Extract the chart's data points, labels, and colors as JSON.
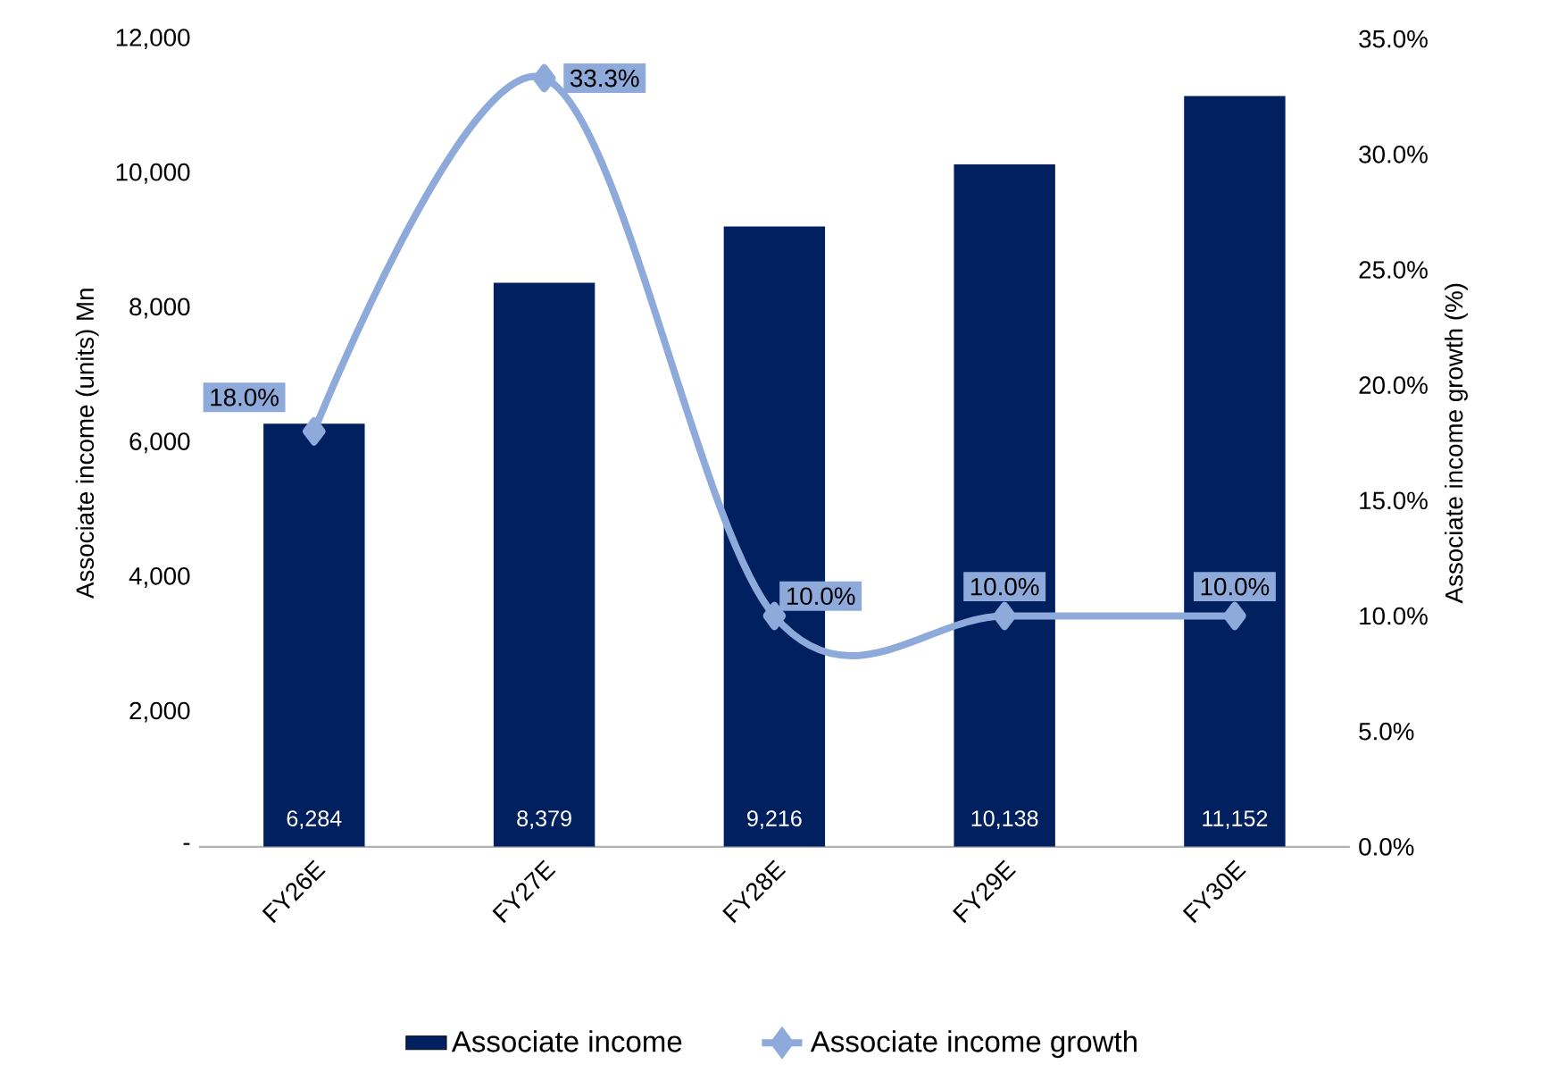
{
  "chart_data": {
    "type": "bar",
    "categories": [
      "FY26E",
      "FY27E",
      "FY28E",
      "FY29E",
      "FY30E"
    ],
    "ylabel": "Associate income (units) Mn",
    "y2label": "Associate income growth (%)",
    "ylim": [
      0,
      12000
    ],
    "yticks": [
      {
        "value": 0,
        "label": "-"
      },
      {
        "value": 2000,
        "label": "2,000"
      },
      {
        "value": 4000,
        "label": "4,000"
      },
      {
        "value": 6000,
        "label": "6,000"
      },
      {
        "value": 8000,
        "label": "8,000"
      },
      {
        "value": 10000,
        "label": "10,000"
      },
      {
        "value": 12000,
        "label": "12,000"
      }
    ],
    "y2lim": [
      0,
      35
    ],
    "y2ticks": [
      {
        "value": 0,
        "label": "0.0%"
      },
      {
        "value": 5,
        "label": "5.0%"
      },
      {
        "value": 10,
        "label": "10.0%"
      },
      {
        "value": 15,
        "label": "15.0%"
      },
      {
        "value": 20,
        "label": "20.0%"
      },
      {
        "value": 25,
        "label": "25.0%"
      },
      {
        "value": 30,
        "label": "30.0%"
      },
      {
        "value": 35,
        "label": "35.0%"
      }
    ],
    "legend": "bottom",
    "series": [
      {
        "name": "Associate income",
        "color": "#002060",
        "values": [
          6284,
          8379,
          9216,
          10138,
          11152
        ],
        "value_labels": [
          "6,284",
          "8,379",
          "9,216",
          "10,138",
          "11,152"
        ]
      },
      {
        "name": "Associate income growth",
        "type": "line",
        "axis": "y2",
        "color": "#8eaadb",
        "marker": "diamond",
        "values": [
          18.0,
          33.3,
          10.0,
          10.0,
          10.0
        ],
        "value_labels": [
          "18.0%",
          "33.3%",
          "10.0%",
          "10.0%",
          "10.0%"
        ]
      }
    ]
  }
}
